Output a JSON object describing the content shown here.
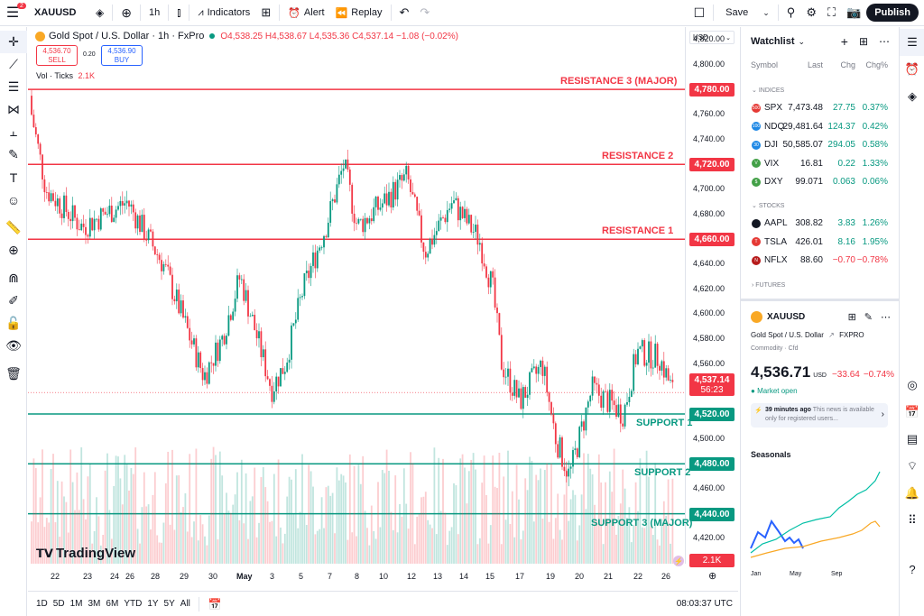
{
  "topbar": {
    "notif_count": "2",
    "symbol": "XAUUSD",
    "interval": "1h",
    "indicators": "Indicators",
    "alert": "Alert",
    "replay": "Replay",
    "save": "Save",
    "publish": "Publish"
  },
  "legend": {
    "title": "Gold Spot / U.S. Dollar · 1h · FxPro",
    "ohlc": "O4,538.25 H4,538.67 L4,535.36 C4,537.14 −1.08 (−0.02%)",
    "sell_price": "4,536.70",
    "sell_label": "SELL",
    "spread": "0.20",
    "buy_price": "4,536.90",
    "buy_label": "BUY",
    "vol_label": "Vol · Ticks",
    "vol_value": "2.1K",
    "currency": "USD"
  },
  "levels": [
    {
      "label": "RESISTANCE 3 (MAJOR)",
      "price": "4,780.00"
    },
    {
      "label": "RESISTANCE 2",
      "price": "4,720.00"
    },
    {
      "label": "RESISTANCE 1",
      "price": "4,660.00"
    },
    {
      "label": "SUPPORT 1",
      "price": "4,520.00"
    },
    {
      "label": "SUPPORT 2",
      "price": "4,480.00"
    },
    {
      "label": "SUPPORT 3 (MAJOR)",
      "price": "4,440.00"
    }
  ],
  "last_price": {
    "price": "4,537.14",
    "countdown": "56:23"
  },
  "vol_tag": "2.1K",
  "y_axis_ticks": [
    "4,820.00",
    "4,800.00",
    "4,760.00",
    "4,740.00",
    "4,700.00",
    "4,680.00",
    "4,640.00",
    "4,620.00",
    "4,600.00",
    "4,580.00",
    "4,560.00",
    "4,500.00",
    "4,460.00",
    "4,420.00"
  ],
  "x_axis_ticks": [
    "22",
    "23",
    "24",
    "26",
    "28",
    "29",
    "30",
    "May",
    "3",
    "5",
    "7",
    "8",
    "10",
    "12",
    "13",
    "14",
    "15",
    "17",
    "19",
    "20",
    "21",
    "22",
    "26"
  ],
  "brand": "TradingView",
  "bottombar": {
    "ranges": [
      "1D",
      "5D",
      "1M",
      "3M",
      "6M",
      "YTD",
      "1Y",
      "5Y",
      "All"
    ],
    "clock": "08:03:37 UTC"
  },
  "watchlist": {
    "title": "Watchlist",
    "cols": [
      "Symbol",
      "Last",
      "Chg",
      "Chg%"
    ],
    "groups": [
      "INDICES",
      "STOCKS",
      "FUTURES"
    ],
    "indices": [
      {
        "sym": "SPX",
        "last": "7,473.48",
        "chg": "27.75",
        "pct": "0.37%",
        "dir": "pos",
        "color": "#e53935",
        "badge": "500"
      },
      {
        "sym": "NDQ",
        "last": "29,481.64",
        "chg": "124.37",
        "pct": "0.42%",
        "dir": "pos",
        "color": "#1e88e5",
        "badge": "100"
      },
      {
        "sym": "DJI",
        "last": "50,585.07",
        "chg": "294.05",
        "pct": "0.58%",
        "dir": "pos",
        "color": "#1e88e5",
        "badge": "30"
      },
      {
        "sym": "VIX",
        "last": "16.81",
        "chg": "0.22",
        "pct": "1.33%",
        "dir": "pos",
        "color": "#43a047",
        "badge": "V"
      },
      {
        "sym": "DXY",
        "last": "99.071",
        "chg": "0.063",
        "pct": "0.06%",
        "dir": "pos",
        "color": "#43a047",
        "badge": "$"
      }
    ],
    "stocks": [
      {
        "sym": "AAPL",
        "last": "308.82",
        "chg": "3.83",
        "pct": "1.26%",
        "dir": "pos",
        "color": "#131722",
        "badge": ""
      },
      {
        "sym": "TSLA",
        "last": "426.01",
        "chg": "8.16",
        "pct": "1.95%",
        "dir": "pos",
        "color": "#e53935",
        "badge": "T"
      },
      {
        "sym": "NFLX",
        "last": "88.60",
        "chg": "−0.70",
        "pct": "−0.78%",
        "dir": "neg",
        "color": "#b71c1c",
        "badge": "N"
      }
    ]
  },
  "details": {
    "symbol": "XAUUSD",
    "name": "Gold Spot / U.S. Dollar",
    "broker": "FXPRO",
    "category": "Commodity · Cfd",
    "price": "4,536.71",
    "currency": "USD",
    "change": "−33.64",
    "change_pct": "−0.74%",
    "market_status": "Market open",
    "news_time": "39 minutes ago",
    "news_text": "This news is available only for registered users...",
    "seasonals": "Seasonals",
    "season_x": [
      "Jan",
      "May",
      "Sep"
    ]
  }
}
